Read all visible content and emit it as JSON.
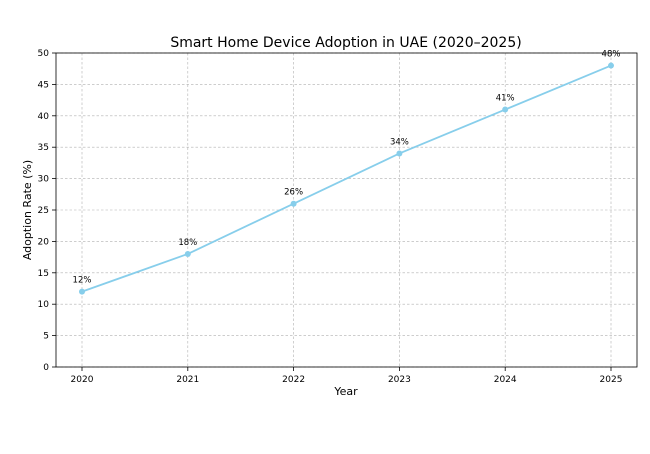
{
  "chart_data": {
    "type": "line",
    "title": "Smart Home Device Adoption in UAE (2020–2025)",
    "xlabel": "Year",
    "ylabel": "Adoption Rate (%)",
    "categories": [
      "2020",
      "2021",
      "2022",
      "2023",
      "2024",
      "2025"
    ],
    "series": [
      {
        "name": "Adoption Rate",
        "values": [
          12,
          18,
          26,
          34,
          41,
          48
        ],
        "labels": [
          "12%",
          "18%",
          "26%",
          "34%",
          "41%",
          "48%"
        ],
        "color": "#87ceeb",
        "marker": "circle"
      }
    ],
    "ylim": [
      0,
      50
    ],
    "yticks": [
      "0",
      "5",
      "10",
      "15",
      "20",
      "25",
      "30",
      "35",
      "40",
      "45",
      "50"
    ],
    "grid": true,
    "grid_style": "dashed",
    "legend": "none"
  }
}
